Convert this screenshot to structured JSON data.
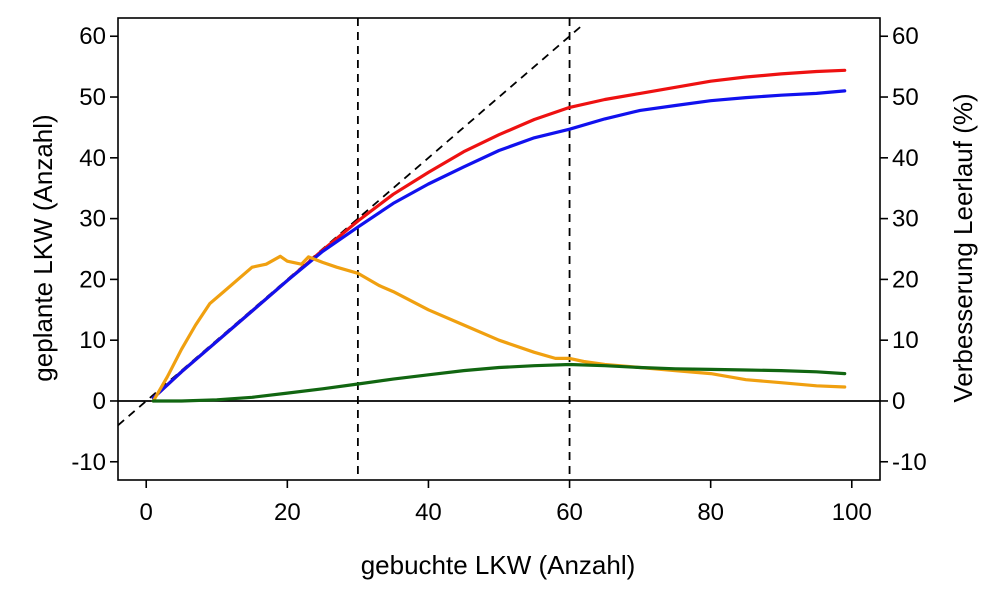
{
  "chart_data": {
    "type": "line",
    "xlabel": "gebuchte LKW (Anzahl)",
    "ylabel": "geplante LKW (Anzahl)",
    "y2label": "Verbesserung Leerlauf (%)",
    "xlim": [
      -4,
      104
    ],
    "ylim": [
      -13,
      63
    ],
    "y2lim": [
      -13,
      63
    ],
    "xticks": [
      "0",
      "20",
      "40",
      "60",
      "80",
      "100"
    ],
    "yticks": [
      "-10",
      "0",
      "10",
      "20",
      "30",
      "40",
      "50",
      "60"
    ],
    "y2ticks": [
      "-10",
      "0",
      "10",
      "20",
      "30",
      "40",
      "50",
      "60"
    ],
    "reference_lines": {
      "vertical_dashed_x": [
        30,
        60
      ],
      "diagonal_dashed": {
        "x": [
          -4,
          62
        ],
        "y": [
          -4,
          62
        ]
      },
      "horizontal_solid_y": 0
    },
    "series": [
      {
        "color": "#ee1111",
        "axis": "left",
        "x": [
          1,
          5,
          10,
          15,
          20,
          25,
          30,
          35,
          40,
          45,
          50,
          55,
          60,
          65,
          70,
          75,
          80,
          85,
          90,
          95,
          99
        ],
        "y": [
          0.5,
          4.8,
          9.8,
          14.8,
          19.8,
          24.8,
          29.6,
          34,
          37.6,
          41,
          43.8,
          46.3,
          48.3,
          49.6,
          50.6,
          51.6,
          52.6,
          53.3,
          53.8,
          54.2,
          54.4
        ]
      },
      {
        "color": "#1111ee",
        "axis": "left",
        "x": [
          1,
          5,
          10,
          15,
          20,
          25,
          30,
          35,
          40,
          45,
          50,
          55,
          60,
          65,
          70,
          75,
          80,
          85,
          90,
          95,
          99
        ],
        "y": [
          0.5,
          4.8,
          9.8,
          14.8,
          19.8,
          24.6,
          28.6,
          32.5,
          35.7,
          38.5,
          41.2,
          43.3,
          44.7,
          46.4,
          47.8,
          48.6,
          49.4,
          49.9,
          50.3,
          50.6,
          51
        ]
      },
      {
        "color": "#f0a010",
        "axis": "right",
        "x": [
          1,
          3,
          5,
          7,
          9,
          11,
          13,
          15,
          17,
          19,
          20,
          22,
          23,
          25,
          27,
          30,
          33,
          35,
          40,
          45,
          50,
          55,
          58,
          60,
          62,
          65,
          70,
          75,
          80,
          85,
          90,
          95,
          99
        ],
        "y": [
          0,
          4,
          8.5,
          12.5,
          16,
          18,
          20,
          22,
          22.5,
          23.8,
          23,
          22.5,
          23.7,
          22.8,
          22,
          21,
          19,
          18,
          15,
          12.5,
          10,
          8,
          7,
          7,
          6.5,
          6,
          5.5,
          5,
          4.5,
          3.5,
          3,
          2.5,
          2.3
        ]
      },
      {
        "color": "#116611",
        "axis": "right",
        "x": [
          1,
          5,
          10,
          15,
          20,
          25,
          30,
          35,
          40,
          45,
          50,
          55,
          60,
          65,
          70,
          75,
          80,
          85,
          90,
          95,
          99
        ],
        "y": [
          0,
          0,
          0.2,
          0.6,
          1.3,
          2,
          2.8,
          3.6,
          4.3,
          5,
          5.5,
          5.8,
          6,
          5.8,
          5.5,
          5.3,
          5.2,
          5.1,
          5,
          4.8,
          4.5
        ]
      }
    ]
  }
}
